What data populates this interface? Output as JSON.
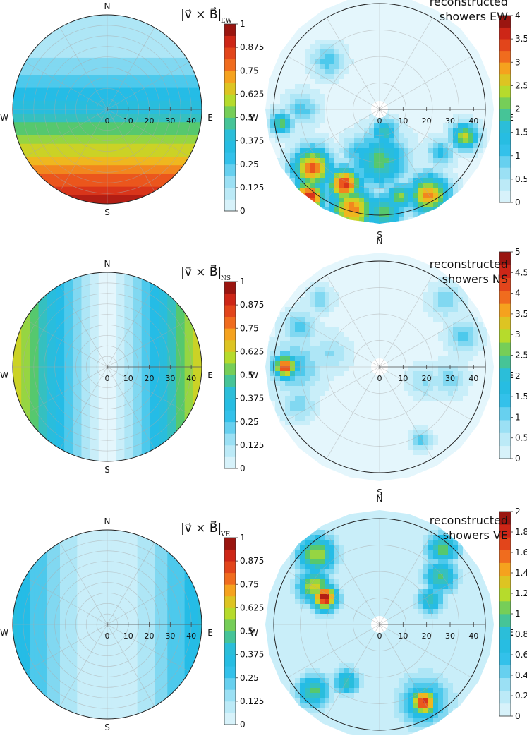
{
  "chart_data": [
    {
      "type": "heatmap",
      "projection": "polar",
      "row": 0,
      "side": "left",
      "title_main": "|v⃗ × B⃗|",
      "title_sub": "EW",
      "pattern": "ew",
      "directions": [
        "N",
        "S",
        "W",
        "E"
      ],
      "radial_ticks": [
        "0",
        "10",
        "20",
        "30",
        "40"
      ],
      "colorbar": {
        "min": 0,
        "max": 1,
        "ticks": [
          "0",
          "0.125",
          "0.25",
          "0.375",
          "0.5",
          "0.625",
          "0.75",
          "0.875",
          "1"
        ]
      }
    },
    {
      "type": "heatmap",
      "projection": "polar",
      "row": 0,
      "side": "right",
      "title_lines": [
        "reconstructed",
        "showers EW"
      ],
      "directions": [
        "N",
        "S",
        "W",
        "E"
      ],
      "radial_ticks": [
        "0",
        "10",
        "20",
        "30",
        "40"
      ],
      "colorbar": {
        "min": 0,
        "max": 4,
        "ticks": [
          "0",
          "0.5",
          "1",
          "1.5",
          "2",
          "2.5",
          "3",
          "3.5",
          "4"
        ]
      },
      "blobs": [
        {
          "theta": 313,
          "zenith": 30,
          "spread": 5,
          "value": 1.0
        },
        {
          "theta": 262,
          "zenith": 42,
          "spread": 3.5,
          "value": 2.0
        },
        {
          "theta": 150,
          "zenith": 42,
          "spread": 6,
          "value": 3.0
        },
        {
          "theta": 108,
          "zenith": 38,
          "spread": 4,
          "value": 2.5
        },
        {
          "theta": 219,
          "zenith": 48,
          "spread": 5,
          "value": 3.6
        },
        {
          "theta": 205,
          "zenith": 35,
          "spread": 5,
          "value": 3.5
        },
        {
          "theta": 229,
          "zenith": 38,
          "spread": 6,
          "value": 3.2
        },
        {
          "theta": 195,
          "zenith": 44,
          "spread": 7,
          "value": 3.0
        },
        {
          "theta": 180,
          "zenith": 22,
          "spread": 8,
          "value": 2.0
        },
        {
          "theta": 178,
          "zenith": 44,
          "spread": 6,
          "value": 2.0
        },
        {
          "theta": 167,
          "zenith": 38,
          "spread": 4,
          "value": 2.3
        },
        {
          "theta": 168,
          "zenith": 10,
          "spread": 4,
          "value": 1.8
        },
        {
          "theta": 125,
          "zenith": 32,
          "spread": 4,
          "value": 1.2
        },
        {
          "theta": 270,
          "zenith": 33,
          "spread": 5,
          "value": 1.0
        },
        {
          "theta": 205,
          "zenith": 20,
          "spread": 5,
          "value": 1.2
        }
      ]
    },
    {
      "type": "heatmap",
      "projection": "polar",
      "row": 1,
      "side": "left",
      "title_main": "|v⃗ × B⃗|",
      "title_sub": "NS",
      "pattern": "ns",
      "directions": [
        "N",
        "S",
        "W",
        "E"
      ],
      "radial_ticks": [
        "0",
        "10",
        "20",
        "30",
        "40"
      ],
      "colorbar": {
        "min": 0,
        "max": 1,
        "ticks": [
          "0",
          "0.125",
          "0.25",
          "0.375",
          "0.5",
          "0.625",
          "0.75",
          "0.875",
          "1"
        ]
      }
    },
    {
      "type": "heatmap",
      "projection": "polar",
      "row": 1,
      "side": "right",
      "title_lines": [
        "reconstructed",
        "showers NS"
      ],
      "directions": [
        "N",
        "S",
        "W",
        "E"
      ],
      "radial_ticks": [
        "0",
        "10",
        "20",
        "30",
        "40"
      ],
      "colorbar": {
        "min": 0,
        "max": 5,
        "ticks": [
          "0",
          "0.5",
          "1",
          "1.5",
          "2",
          "2.5",
          "3",
          "3.5",
          "4",
          "4.5",
          "5"
        ]
      },
      "blobs": [
        {
          "theta": 270,
          "zenith": 40,
          "spread": 3.5,
          "value": 4.3
        },
        {
          "theta": 270,
          "zenith": 36,
          "spread": 8,
          "value": 1.3
        },
        {
          "theta": 296,
          "zenith": 38,
          "spread": 5,
          "value": 1.2
        },
        {
          "theta": 318,
          "zenith": 38,
          "spread": 4,
          "value": 1.0
        },
        {
          "theta": 285,
          "zenith": 22,
          "spread": 6,
          "value": 0.8
        },
        {
          "theta": 245,
          "zenith": 38,
          "spread": 5,
          "value": 1.0
        },
        {
          "theta": 45,
          "zenith": 40,
          "spread": 5,
          "value": 1.0
        },
        {
          "theta": 70,
          "zenith": 38,
          "spread": 5,
          "value": 1.2
        },
        {
          "theta": 100,
          "zenith": 30,
          "spread": 5,
          "value": 1.0
        },
        {
          "theta": 108,
          "zenith": 20,
          "spread": 5,
          "value": 0.8
        },
        {
          "theta": 150,
          "zenith": 36,
          "spread": 3,
          "value": 1.2
        }
      ]
    },
    {
      "type": "heatmap",
      "projection": "polar",
      "row": 2,
      "side": "left",
      "title_main": "|v⃗ × B⃗|",
      "title_sub": "VE",
      "pattern": "ve",
      "directions": [
        "N",
        "S",
        "W",
        "E"
      ],
      "radial_ticks": [
        "0",
        "10",
        "20",
        "30",
        "40"
      ],
      "colorbar": {
        "min": 0,
        "max": 1,
        "ticks": [
          "0",
          "0.125",
          "0.25",
          "0.375",
          "0.5",
          "0.625",
          "0.75",
          "0.875",
          "1"
        ]
      }
    },
    {
      "type": "heatmap",
      "projection": "polar",
      "row": 2,
      "side": "right",
      "title_lines": [
        "reconstructed",
        "showers VE"
      ],
      "directions": [
        "N",
        "S",
        "W",
        "E"
      ],
      "radial_ticks": [
        "0",
        "10",
        "20",
        "30",
        "40"
      ],
      "colorbar": {
        "min": 0,
        "max": 2,
        "ticks": [
          "0",
          "0.2",
          "0.4",
          "0.6",
          "0.8",
          "1",
          "1.2",
          "1.4",
          "1.6",
          "1.8",
          "2"
        ]
      },
      "blobs": [
        {
          "theta": 318,
          "zenith": 40,
          "spread": 6,
          "value": 1.2
        },
        {
          "theta": 300,
          "zenith": 32,
          "spread": 5,
          "value": 1.3
        },
        {
          "theta": 296,
          "zenith": 26,
          "spread": 4,
          "value": 1.9
        },
        {
          "theta": 40,
          "zenith": 42,
          "spread": 5,
          "value": 1.0
        },
        {
          "theta": 52,
          "zenith": 33,
          "spread": 5,
          "value": 1.0
        },
        {
          "theta": 65,
          "zenith": 24,
          "spread": 4,
          "value": 0.9
        },
        {
          "theta": 225,
          "zenith": 40,
          "spread": 5,
          "value": 1.0
        },
        {
          "theta": 210,
          "zenith": 28,
          "spread": 4,
          "value": 0.9
        },
        {
          "theta": 150,
          "zenith": 38,
          "spread": 4,
          "value": 1.8
        },
        {
          "theta": 150,
          "zenith": 38,
          "spread": 8,
          "value": 0.8
        }
      ]
    }
  ]
}
